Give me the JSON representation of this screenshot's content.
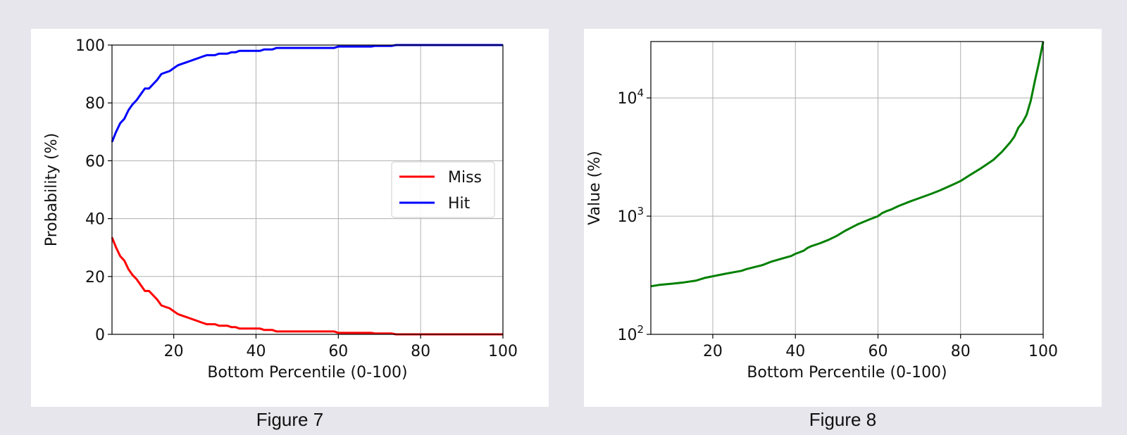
{
  "figures": [
    {
      "caption": "Figure 7",
      "chart_data": {
        "type": "line",
        "title": "",
        "xlabel": "Bottom Percentile (0-100)",
        "ylabel": "Probability (%)",
        "xlim": [
          5,
          100
        ],
        "ylim": [
          0,
          100
        ],
        "xticks": [
          20,
          40,
          60,
          80,
          100
        ],
        "xtick_labels": [
          "20",
          "40",
          "60",
          "80",
          "100"
        ],
        "yticks": [
          0,
          20,
          40,
          60,
          80,
          100
        ],
        "ytick_labels": [
          "0",
          "20",
          "40",
          "60",
          "80",
          "100"
        ],
        "grid": true,
        "legend": "center-right",
        "series": [
          {
            "name": "Miss",
            "color": "#ff0000",
            "x": [
              5,
              6,
              7,
              8,
              9,
              10,
              11,
              12,
              13,
              14,
              15,
              16,
              17,
              18,
              19,
              20,
              21,
              22,
              23,
              24,
              25,
              26,
              27,
              28,
              29,
              30,
              31,
              32,
              33,
              34,
              35,
              36,
              38,
              40,
              41,
              42,
              43,
              44,
              45,
              50,
              55,
              59,
              60,
              65,
              68,
              69,
              70,
              73,
              74,
              80,
              100
            ],
            "values": [
              33.5,
              30,
              27,
              25.5,
              22.5,
              20.5,
              19,
              17,
              15,
              15,
              13.5,
              12,
              10,
              9.5,
              9,
              8,
              7,
              6.5,
              6,
              5.5,
              5,
              4.5,
              4,
              3.5,
              3.5,
              3.5,
              3,
              3,
              3,
              2.5,
              2.5,
              2,
              2,
              2,
              2,
              1.5,
              1.5,
              1.5,
              1,
              1,
              1,
              1,
              0.5,
              0.5,
              0.5,
              0.3,
              0.3,
              0.3,
              0,
              0,
              0
            ]
          },
          {
            "name": "Hit",
            "color": "#0000ff",
            "x": [
              5,
              6,
              7,
              8,
              9,
              10,
              11,
              12,
              13,
              14,
              15,
              16,
              17,
              18,
              19,
              20,
              21,
              22,
              23,
              24,
              25,
              26,
              27,
              28,
              29,
              30,
              31,
              32,
              33,
              34,
              35,
              36,
              38,
              40,
              41,
              42,
              43,
              44,
              45,
              50,
              55,
              59,
              60,
              65,
              68,
              69,
              70,
              73,
              74,
              80,
              100
            ],
            "values": [
              66.5,
              70,
              73,
              74.5,
              77.5,
              79.5,
              81,
              83,
              85,
              85,
              86.5,
              88,
              90,
              90.5,
              91,
              92,
              93,
              93.5,
              94,
              94.5,
              95,
              95.5,
              96,
              96.5,
              96.5,
              96.5,
              97,
              97,
              97,
              97.5,
              97.5,
              98,
              98,
              98,
              98,
              98.5,
              98.5,
              98.5,
              99,
              99,
              99,
              99,
              99.5,
              99.5,
              99.5,
              99.7,
              99.7,
              99.7,
              100,
              100,
              100
            ]
          }
        ]
      }
    },
    {
      "caption": "Figure 8",
      "chart_data": {
        "type": "line",
        "title": "",
        "xlabel": "Bottom Percentile (0-100)",
        "ylabel": "Value (%)",
        "xlim": [
          5,
          100
        ],
        "ylim": [
          100,
          30000
        ],
        "yscale": "log",
        "xticks": [
          20,
          40,
          60,
          80,
          100
        ],
        "xtick_labels": [
          "20",
          "40",
          "60",
          "80",
          "100"
        ],
        "yticks": [
          100,
          1000,
          10000
        ],
        "ytick_labels": [
          {
            "base": "10",
            "exp": "2"
          },
          {
            "base": "10",
            "exp": "3"
          },
          {
            "base": "10",
            "exp": "4"
          }
        ],
        "grid": true,
        "series": [
          {
            "color": "#008000",
            "x": [
              5,
              7,
              10,
              13,
              16,
              18,
              20,
              23,
              25,
              27,
              28,
              30,
              32,
              34,
              35,
              37,
              39,
              40,
              42,
              43,
              44,
              46,
              48,
              50,
              52,
              55,
              58,
              60,
              61,
              62,
              63,
              65,
              68,
              70,
              73,
              75,
              78,
              80,
              82,
              85,
              88,
              90,
              92,
              93,
              94,
              95,
              96,
              97,
              98,
              99,
              100
            ],
            "values": [
              255,
              262,
              268,
              275,
              285,
              300,
              310,
              325,
              335,
              345,
              355,
              370,
              385,
              410,
              420,
              440,
              460,
              480,
              510,
              540,
              560,
              590,
              630,
              680,
              750,
              850,
              940,
              1000,
              1060,
              1100,
              1130,
              1220,
              1340,
              1420,
              1550,
              1650,
              1840,
              1980,
              2200,
              2550,
              3000,
              3500,
              4200,
              4700,
              5600,
              6200,
              7200,
              9500,
              14000,
              20000,
              30000
            ]
          }
        ]
      }
    }
  ]
}
